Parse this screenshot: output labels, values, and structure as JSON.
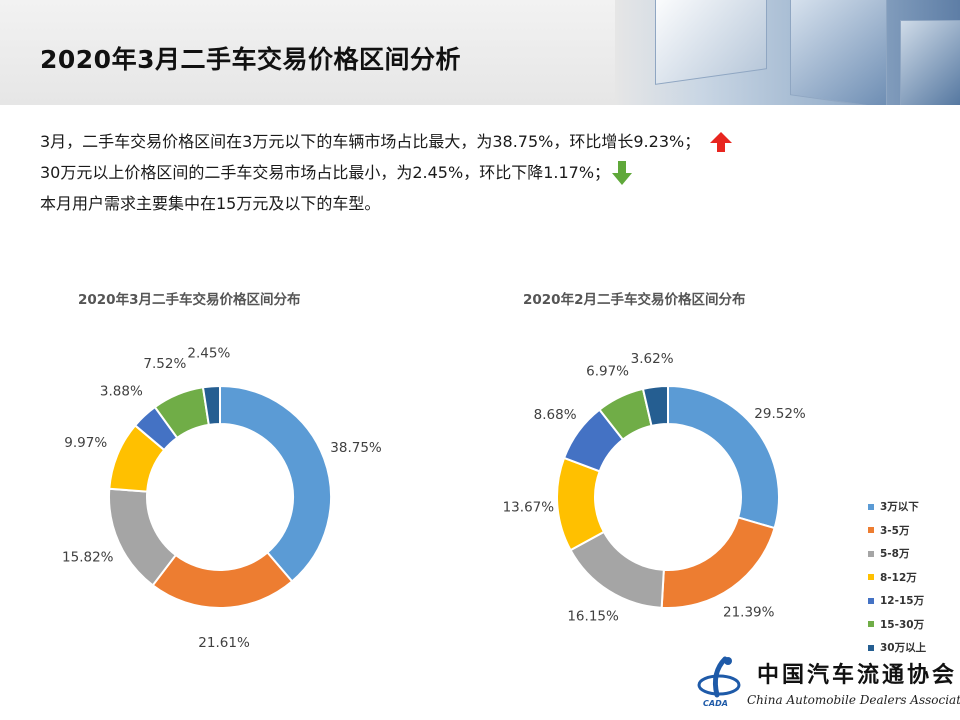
{
  "page_title": "2020年3月二手车交易价格区间分析",
  "summary": {
    "line1": "3月，二手车交易价格区间在3万元以下的车辆市场占比最大，为38.75%，环比增长9.23%；",
    "line2": "30万元以上价格区间的二手车交易市场占比最小，为2.45%，环比下降1.17%；",
    "line3": "本月用户需求主要集中在15万元及以下的车型。",
    "up_arrow_icon": "red-up-arrow-icon",
    "down_arrow_icon": "green-down-arrow-icon"
  },
  "colors": {
    "3万以下": "#5b9bd5",
    "3-5万": "#ed7d31",
    "5-8万": "#a5a5a5",
    "8-12万": "#ffc000",
    "12-15万": "#4472c4",
    "15-30万": "#70ad47",
    "30万以上": "#255e91",
    "up_arrow": "#e8251f",
    "down_arrow": "#5fa83a"
  },
  "chart_data": [
    {
      "type": "pie",
      "title": "2020年3月二手车交易价格区间分布",
      "categories": [
        "3万以下",
        "3-5万",
        "5-8万",
        "8-12万",
        "12-15万",
        "15-30万",
        "30万以上"
      ],
      "values": [
        38.75,
        21.61,
        15.82,
        9.97,
        3.88,
        7.52,
        2.45
      ],
      "labels": [
        "38.75%",
        "21.61%",
        "15.82%",
        "9.97%",
        "3.88%",
        "7.52%",
        "2.45%"
      ]
    },
    {
      "type": "pie",
      "title": "2020年2月二手车交易价格区间分布",
      "categories": [
        "3万以下",
        "3-5万",
        "5-8万",
        "8-12万",
        "12-15万",
        "15-30万",
        "30万以上"
      ],
      "values": [
        29.52,
        21.39,
        16.15,
        13.67,
        8.68,
        6.97,
        3.62
      ],
      "labels": [
        "29.52%",
        "21.39%",
        "16.15%",
        "13.67%",
        "8.68%",
        "6.97%",
        "3.62%"
      ],
      "legend": "right"
    }
  ],
  "legend": [
    "3万以下",
    "3-5万",
    "5-8万",
    "8-12万",
    "12-15万",
    "15-30万",
    "30万以上"
  ],
  "logo": {
    "chinese_name": "中国汽车流通协会",
    "english_name": "China Automobile Dealers Association",
    "abbreviation": "CADA"
  }
}
